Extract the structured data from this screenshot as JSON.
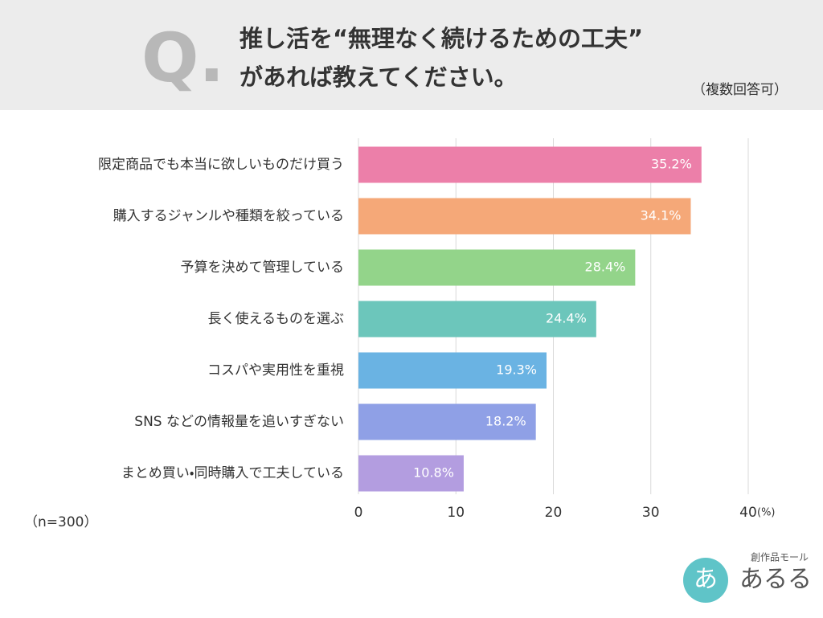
{
  "chart_data": {
    "type": "barh",
    "question_mark": "Q.",
    "title": [
      "推し活を“無理なく続けるための工夫”",
      "があれば教えてください。"
    ],
    "subtitle": "（複数回答可）",
    "categories": [
      "限定商品でも本当に欲しいものだけ買う",
      "購入するジャンルや種類を絞っている",
      "予算を決めて管理している",
      "長く使えるものを選ぶ",
      "コスパや実用性を重視",
      "SNS などの情報量を追いすぎない",
      "まとめ買い・同時購入で工夫している"
    ],
    "values": [
      35.2,
      34.1,
      28.4,
      24.4,
      19.3,
      18.2,
      10.8
    ],
    "value_labels": [
      "35.2%",
      "34.1%",
      "28.4%",
      "24.4%",
      "19.3%",
      "18.2%",
      "10.8%"
    ],
    "colors": [
      "#ec7fa9",
      "#f5a878",
      "#93d48a",
      "#6cc6bb",
      "#6ab3e3",
      "#8fa0e6",
      "#b39de0"
    ],
    "xlim": [
      0,
      40
    ],
    "xticks": [
      0,
      10,
      20,
      30,
      40
    ],
    "x_unit": "(%)",
    "grid": true,
    "note": "（n=300）",
    "logo": {
      "mark": "あ",
      "caption": "創作品モール",
      "name": "あるる"
    }
  }
}
